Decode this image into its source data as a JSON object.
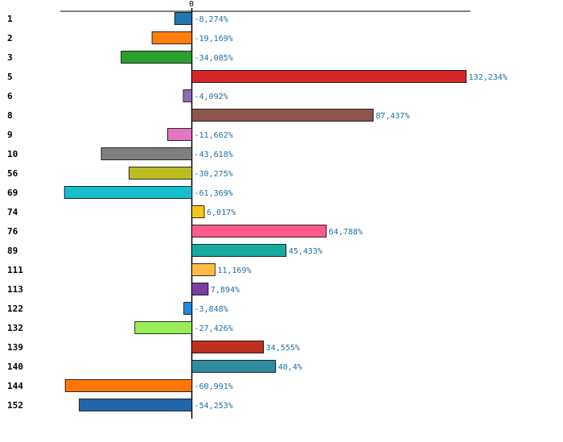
{
  "chart_data": {
    "type": "bar",
    "orientation": "horizontal",
    "title": "",
    "xlabel": "",
    "ylabel": "",
    "xlim": [
      -75,
      135
    ],
    "grid": false,
    "zero_label": "0",
    "categories": [
      "1",
      "2",
      "3",
      "5",
      "6",
      "8",
      "9",
      "10",
      "56",
      "69",
      "74",
      "76",
      "89",
      "111",
      "113",
      "122",
      "132",
      "139",
      "140",
      "144",
      "152"
    ],
    "values": [
      -8.274,
      -19.169,
      -34.085,
      132.234,
      -4.092,
      87.437,
      -11.662,
      -43.618,
      -30.275,
      -61.369,
      6.017,
      64.788,
      45.433,
      11.169,
      7.894,
      -3.848,
      -27.426,
      34.555,
      40.4,
      -60.991,
      -54.253
    ],
    "value_labels": [
      "-8,274%",
      "-19,169%",
      "-34,085%",
      "132,234%",
      "-4,092%",
      "87,437%",
      "-11,662%",
      "-43,618%",
      "-30,275%",
      "-61,369%",
      "6,017%",
      "64,788%",
      "45,433%",
      "11,169%",
      "7,894%",
      "-3,848%",
      "-27,426%",
      "34,555%",
      "40,4%",
      "-60,991%",
      "-54,253%"
    ],
    "colors": [
      "#1f77b4",
      "#ff7f0e",
      "#2ca02c",
      "#d62728",
      "#9467bd",
      "#8c564b",
      "#e377c2",
      "#7f7f7f",
      "#bcbd22",
      "#17becf",
      "#f5c518",
      "#ff5a8c",
      "#17aaa0",
      "#ffbb44",
      "#7b3fa0",
      "#1e88e5",
      "#99ee55",
      "#c0301f",
      "#2e8ba0",
      "#ff7700",
      "#2266aa"
    ]
  }
}
